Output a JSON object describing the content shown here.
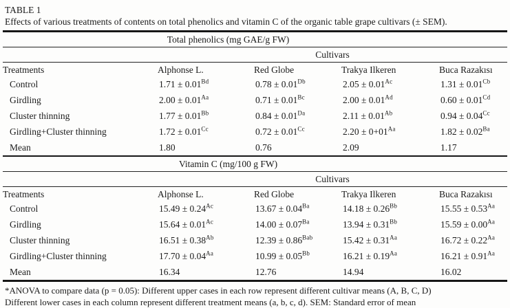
{
  "table": {
    "label": "TABLE 1",
    "caption": "Effects of various treatments of contents on total phenolics and vitamin C of the organic table grape cultivars (± SEM).",
    "sections": [
      {
        "heading": "Total phenolics (mg GAE/g FW)",
        "group_header": "Cultivars",
        "columns": [
          "Treatments",
          "Alphonse L.",
          "Red Globe",
          "Trakya Ilkeren",
          "Buca Razakısı"
        ],
        "rows": [
          {
            "label": "Control",
            "cells": [
              {
                "v": "1.71 ± 0.01",
                "sup": "Bd"
              },
              {
                "v": "0.78 ± 0.01",
                "sup": "Db"
              },
              {
                "v": "2.05 ± 0.01",
                "sup": "Ac"
              },
              {
                "v": "1.31 ± 0.01",
                "sup": "Cb"
              }
            ]
          },
          {
            "label": "Girdling",
            "cells": [
              {
                "v": "2.00 ± 0.01",
                "sup": "Aa"
              },
              {
                "v": "0.71 ± 0.01",
                "sup": "Bc"
              },
              {
                "v": "2.00 ± 0.01",
                "sup": "Ad"
              },
              {
                "v": "0.60 ± 0.01",
                "sup": "Cd"
              }
            ]
          },
          {
            "label": "Cluster thinning",
            "cells": [
              {
                "v": "1.77 ± 0.01",
                "sup": "Bb"
              },
              {
                "v": "0.84 ± 0.01",
                "sup": "Da"
              },
              {
                "v": "2.11 ± 0.01",
                "sup": "Ab"
              },
              {
                "v": "0.94 ± 0.04",
                "sup": "Cc"
              }
            ]
          },
          {
            "label": "Girdling+Cluster thinning",
            "cells": [
              {
                "v": "1.72 ± 0.01",
                "sup": "Cc"
              },
              {
                "v": "0.72 ± 0.01",
                "sup": "Cc"
              },
              {
                "v": "2.20 ± 0+01",
                "sup": "Aa"
              },
              {
                "v": "1.82 ± 0.02",
                "sup": "Ba"
              }
            ]
          },
          {
            "label": "Mean",
            "cells": [
              {
                "v": "1.80",
                "sup": ""
              },
              {
                "v": "0.76",
                "sup": ""
              },
              {
                "v": "2.09",
                "sup": ""
              },
              {
                "v": "1.17",
                "sup": ""
              }
            ]
          }
        ]
      },
      {
        "heading": "Vitamin C (mg/100 g FW)",
        "group_header": "Cultivars",
        "columns": [
          "Treatments",
          "Alphonse L.",
          "Red Globe",
          "Trakya Ilkeren",
          "Buca Razakısı"
        ],
        "rows": [
          {
            "label": "Control",
            "cells": [
              {
                "v": "15.49 ± 0.24",
                "sup": "Ac"
              },
              {
                "v": "13.67 ± 0.04",
                "sup": "Ba"
              },
              {
                "v": "14.18 ± 0.26",
                "sup": "Bb"
              },
              {
                "v": "15.55 ± 0.53",
                "sup": "Aa"
              }
            ]
          },
          {
            "label": "Girdling",
            "cells": [
              {
                "v": "15.64 ± 0.01",
                "sup": "Ac"
              },
              {
                "v": "14.00 ± 0.07",
                "sup": "Ba"
              },
              {
                "v": "13.94 ± 0.31",
                "sup": "Bb"
              },
              {
                "v": "15.59 ± 0.00",
                "sup": "Aa"
              }
            ]
          },
          {
            "label": "Cluster thinning",
            "cells": [
              {
                "v": "16.51 ± 0.38",
                "sup": "Ab"
              },
              {
                "v": "12.39 ± 0.86",
                "sup": "Bab"
              },
              {
                "v": "15.42 ± 0.31",
                "sup": "Aa"
              },
              {
                "v": "16.72 ± 0.22",
                "sup": "Aa"
              }
            ]
          },
          {
            "label": "Girdling+Cluster thinning",
            "cells": [
              {
                "v": "17.70 ± 0.04",
                "sup": "Aa"
              },
              {
                "v": "10.99 ± 0.05",
                "sup": "Bb"
              },
              {
                "v": "16.21 ± 0.19",
                "sup": "Aa"
              },
              {
                "v": "16.21 ± 0.91",
                "sup": "Aa"
              }
            ]
          },
          {
            "label": "Mean",
            "cells": [
              {
                "v": "16.34",
                "sup": ""
              },
              {
                "v": "12.76",
                "sup": ""
              },
              {
                "v": "14.94",
                "sup": ""
              },
              {
                "v": "16.02",
                "sup": ""
              }
            ]
          }
        ]
      }
    ],
    "footnotes": [
      "*ANOVA to compare data (p = 0.05): Different upper cases in each row represent different cultivar means (A, B, C, D)",
      "Different lower cases in each column represent different treatment means (a, b, c, d). SEM: Standard error of mean"
    ]
  }
}
